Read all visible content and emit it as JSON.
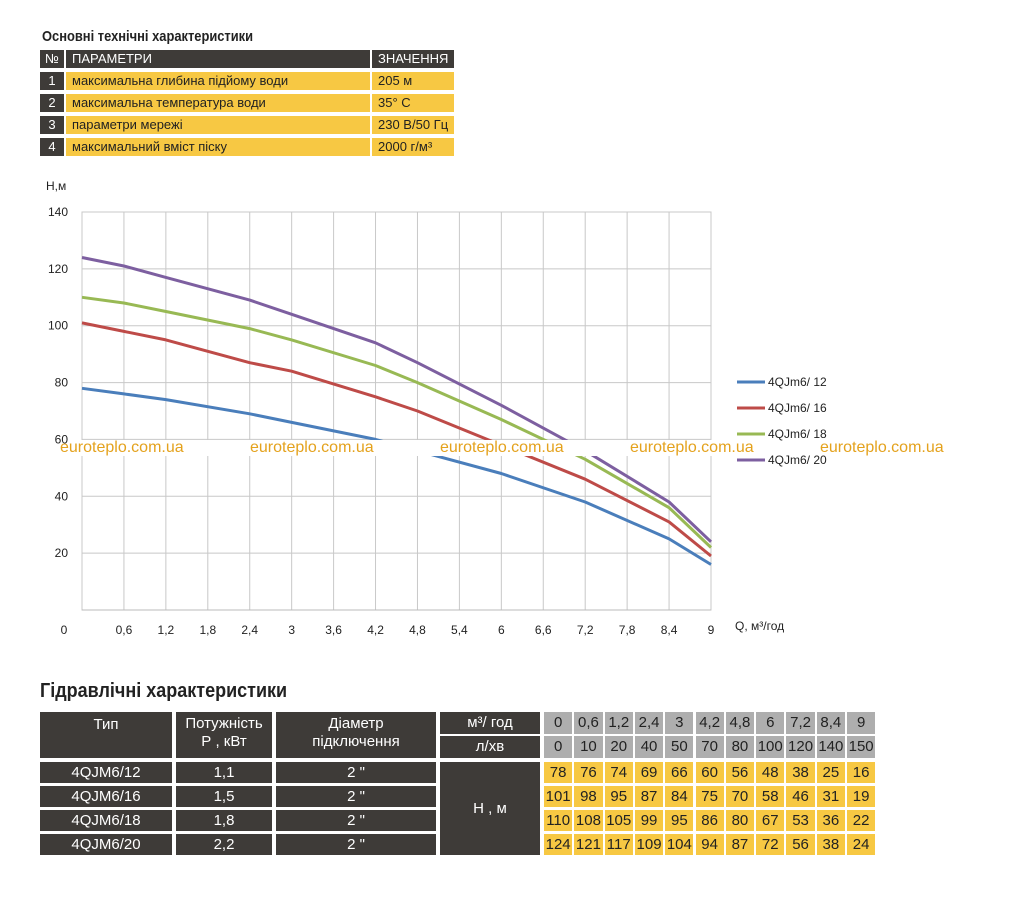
{
  "spec": {
    "title": "Основні технічні характеристики",
    "header": {
      "num": "№",
      "param": "ПАРАМЕТРИ",
      "value": "ЗНАЧЕННЯ"
    },
    "rows": [
      {
        "num": "1",
        "param": "максимальна глибина підйому води",
        "value": "205 м"
      },
      {
        "num": "2",
        "param": "максимальна температура води",
        "value": "35° С"
      },
      {
        "num": "3",
        "param": "параметри мережі",
        "value": "230 В/50 Гц"
      },
      {
        "num": "4",
        "param": "максимальний вміст піску",
        "value": "2000 г/м³"
      }
    ]
  },
  "chart_data": {
    "type": "line",
    "ylabel": "Н,м",
    "xlabel": "Q, м³/год",
    "origin_label": "0",
    "x": [
      0,
      0.6,
      1.2,
      1.8,
      2.4,
      3,
      3.6,
      4.2,
      4.8,
      5.4,
      6,
      6.6,
      7.2,
      7.8,
      8.4,
      9
    ],
    "x_tick_labels": [
      "0,6",
      "1,2",
      "1,8",
      "2,4",
      "3",
      "3,6",
      "4,2",
      "4,8",
      "5,4",
      "6",
      "6,6",
      "7,2",
      "7,8",
      "8,4",
      "9"
    ],
    "y_ticks": [
      20,
      40,
      60,
      80,
      100,
      120,
      140
    ],
    "ylim": [
      0,
      140
    ],
    "xlim": [
      0,
      9
    ],
    "grid": true,
    "legend_position": "right",
    "series": [
      {
        "name": "4QJm6/ 12",
        "color": "#4a7ebb",
        "x": [
          0,
          0.6,
          1.2,
          2.4,
          3,
          4.2,
          4.8,
          6,
          7.2,
          8.4,
          9
        ],
        "values": [
          78,
          76,
          74,
          69,
          66,
          60,
          56,
          48,
          38,
          25,
          16
        ]
      },
      {
        "name": "4QJm6/ 16",
        "color": "#be4b48",
        "x": [
          0,
          0.6,
          1.2,
          2.4,
          3,
          4.2,
          4.8,
          6,
          7.2,
          8.4,
          9
        ],
        "values": [
          101,
          98,
          95,
          87,
          84,
          75,
          70,
          58,
          46,
          31,
          19
        ]
      },
      {
        "name": "4QJm6/ 18",
        "color": "#98b954",
        "x": [
          0,
          0.6,
          1.2,
          2.4,
          3,
          4.2,
          4.8,
          6,
          7.2,
          8.4,
          9
        ],
        "values": [
          110,
          108,
          105,
          99,
          95,
          86,
          80,
          67,
          53,
          36,
          22
        ]
      },
      {
        "name": "4QJm6/ 20",
        "color": "#7d5fa0",
        "x": [
          0,
          0.6,
          1.2,
          2.4,
          3,
          4.2,
          4.8,
          6,
          7.2,
          8.4,
          9
        ],
        "values": [
          124,
          121,
          117,
          109,
          104,
          94,
          87,
          72,
          56,
          38,
          24
        ]
      }
    ],
    "watermark": "euroteplo.com.ua"
  },
  "hydraulic": {
    "title": "Гідравлічні характеристики",
    "headers": {
      "type": "Тип",
      "power": "Потужність\nР , кВт",
      "diameter": "Діаметр\nпідключення",
      "flow_m3": "м³/ год",
      "flow_l": "л/хв",
      "head": "Н , м"
    },
    "flow_m3": [
      "0",
      "0,6",
      "1,2",
      "2,4",
      "3",
      "4,2",
      "4,8",
      "6",
      "7,2",
      "8,4",
      "9"
    ],
    "flow_l": [
      "0",
      "10",
      "20",
      "40",
      "50",
      "70",
      "80",
      "100",
      "120",
      "140",
      "150"
    ],
    "models": [
      {
        "type": "4QJM6/12",
        "power": "1,1",
        "diameter": "2 \"",
        "head": [
          "78",
          "76",
          "74",
          "69",
          "66",
          "60",
          "56",
          "48",
          "38",
          "25",
          "16"
        ]
      },
      {
        "type": "4QJM6/16",
        "power": "1,5",
        "diameter": "2 \"",
        "head": [
          "101",
          "98",
          "95",
          "87",
          "84",
          "75",
          "70",
          "58",
          "46",
          "31",
          "19"
        ]
      },
      {
        "type": "4QJM6/18",
        "power": "1,8",
        "diameter": "2 \"",
        "head": [
          "110",
          "108",
          "105",
          "99",
          "95",
          "86",
          "80",
          "67",
          "53",
          "36",
          "22"
        ]
      },
      {
        "type": "4QJM6/20",
        "power": "2,2",
        "diameter": "2 \"",
        "head": [
          "124",
          "121",
          "117",
          "109",
          "104",
          "94",
          "87",
          "72",
          "56",
          "38",
          "24"
        ]
      }
    ]
  }
}
